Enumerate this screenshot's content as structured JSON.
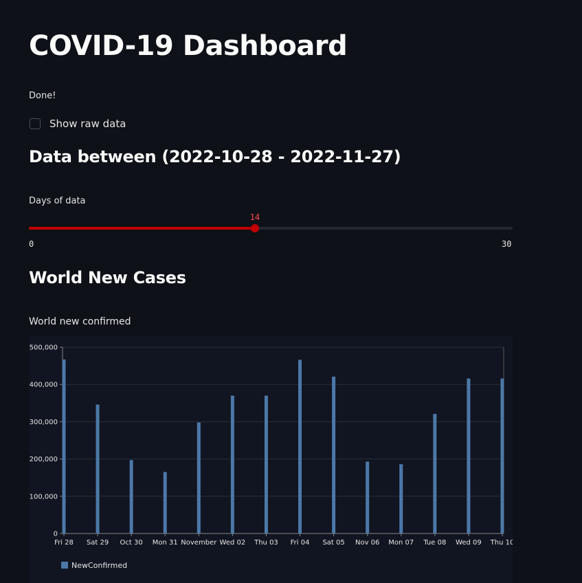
{
  "page": {
    "title": "COVID-19 Dashboard",
    "status": "Done!",
    "show_raw_data_label": "Show raw data",
    "range_heading": "Data between (2022-10-28 - 2022-11-27)"
  },
  "slider": {
    "label": "Days of data",
    "value": 14,
    "value_label": "14",
    "min": 0,
    "max": 30,
    "min_label": "0",
    "max_label": "30",
    "accent_color": "#c20000"
  },
  "section": {
    "heading": "World New Cases",
    "chart_title": "World new confirmed"
  },
  "chart_data": {
    "type": "bar",
    "title": "",
    "xlabel": "",
    "ylabel": "",
    "ylim": [
      0,
      500000
    ],
    "yticks": [
      0,
      100000,
      200000,
      300000,
      400000,
      500000
    ],
    "ytick_labels": [
      "0",
      "100,000",
      "200,000",
      "300,000",
      "400,000",
      "500,000"
    ],
    "categories": [
      "Fri 28",
      "Sat 29",
      "Oct 30",
      "Mon 31",
      "November",
      "Wed 02",
      "Thu 03",
      "Fri 04",
      "Sat 05",
      "Nov 06",
      "Mon 07",
      "Tue 08",
      "Wed 09",
      "Thu 10"
    ],
    "grid": true,
    "legend_position": "bottom-left",
    "series": [
      {
        "name": "NewConfirmed",
        "color": "#4c78a8",
        "values": [
          467000,
          346000,
          197000,
          165000,
          298000,
          370000,
          370000,
          466000,
          421000,
          193000,
          186000,
          321000,
          416000,
          416000
        ]
      }
    ]
  }
}
